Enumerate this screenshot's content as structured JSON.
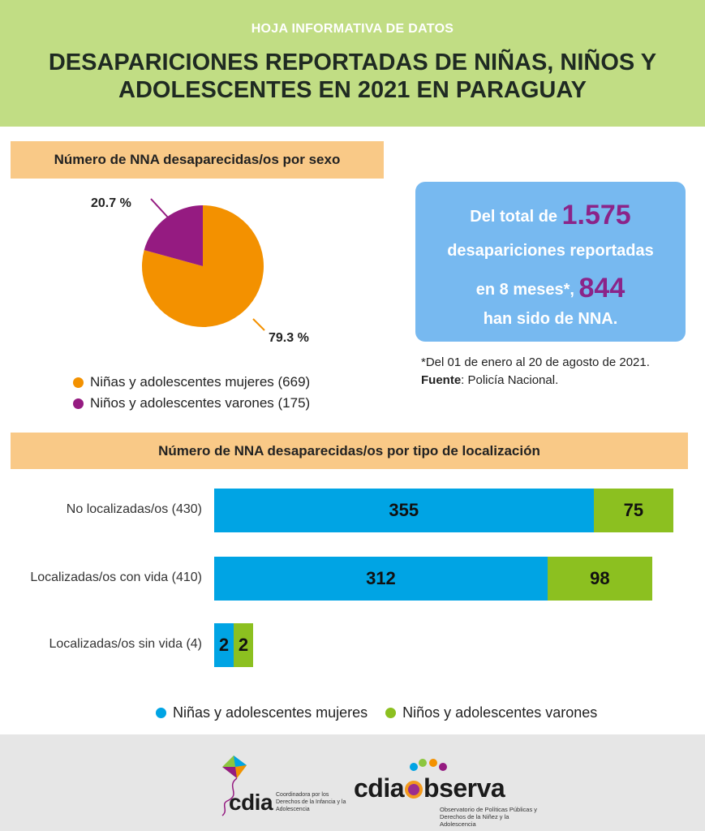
{
  "header": {
    "kicker": "HOJA INFORMATIVA DE DATOS",
    "title": "DESAPARICIONES REPORTADAS DE NIÑAS, NIÑOS Y ADOLESCENTES EN 2021 EN PARAGUAY"
  },
  "colors": {
    "header_bg": "#c1dd84",
    "band_bg": "#f9c987",
    "callout_bg": "#77b9f0",
    "female_pie": "#f39100",
    "male_pie": "#951b81",
    "female_bar": "#00a4e4",
    "male_bar": "#8cc020",
    "highlight": "#8b2489"
  },
  "sex_section": {
    "heading": "Número de NNA desaparecidas/os por sexo",
    "legend": [
      {
        "label": "Niñas y adolescentes mujeres (669)",
        "color": "#f39100"
      },
      {
        "label": "Niños y adolescentes varones (175)",
        "color": "#951b81"
      }
    ]
  },
  "callout": {
    "pre_total": "Del total de",
    "total": "1.575",
    "line2": "desapariciones reportadas",
    "pre_nna": "en 8 meses*,",
    "nna": "844",
    "line4": "han sido de NNA."
  },
  "notes": {
    "period": "*Del 01 de enero al 20 de agosto de 2021.",
    "source_label": "Fuente",
    "source_value": ": Policía Nacional."
  },
  "location_section": {
    "heading": "Número de NNA desaparecidas/os por tipo de localización",
    "legend": [
      {
        "label": "Niñas y adolescentes mujeres",
        "color": "#00a4e4"
      },
      {
        "label": "Niños y adolescentes varones",
        "color": "#8cc020"
      }
    ]
  },
  "chart_data": [
    {
      "type": "pie",
      "title": "Número de NNA desaparecidas/os por sexo",
      "slices": [
        {
          "name": "Niñas y adolescentes mujeres (669)",
          "value": 669,
          "percent_label": "79.3 %",
          "color": "#f39100"
        },
        {
          "name": "Niños y adolescentes varones (175)",
          "value": 175,
          "percent_label": "20.7 %",
          "color": "#951b81"
        }
      ]
    },
    {
      "type": "bar",
      "orientation": "horizontal",
      "stacked": true,
      "title": "Número de NNA desaparecidas/os por tipo de localización",
      "categories": [
        "No localizadas/os (430)",
        "Localizadas/os con vida (410)",
        "Localizadas/os sin vida (4)"
      ],
      "series": [
        {
          "name": "Niñas y adolescentes mujeres",
          "values": [
            355,
            312,
            2
          ],
          "color": "#00a4e4"
        },
        {
          "name": "Niños y adolescentes varones",
          "values": [
            75,
            98,
            2
          ],
          "color": "#8cc020"
        }
      ],
      "legend": "bottom"
    }
  ],
  "logos": {
    "cdia_name": "cdia",
    "cdia_sub": "Coordinadora por los Derechos de la Infancia y la Adolescencia",
    "obs_pre": "cdia",
    "obs_post": "bserva",
    "obs_sub": "Observatorio de Políticas Públicas y Derechos de la Niñez y la Adolescencia"
  }
}
